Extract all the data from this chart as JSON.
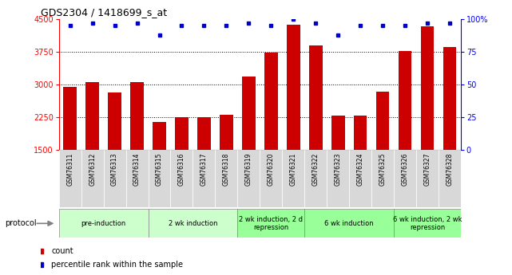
{
  "title": "GDS2304 / 1418699_s_at",
  "samples": [
    "GSM76311",
    "GSM76312",
    "GSM76313",
    "GSM76314",
    "GSM76315",
    "GSM76316",
    "GSM76317",
    "GSM76318",
    "GSM76319",
    "GSM76320",
    "GSM76321",
    "GSM76322",
    "GSM76323",
    "GSM76324",
    "GSM76325",
    "GSM76326",
    "GSM76327",
    "GSM76328"
  ],
  "counts": [
    2950,
    3060,
    2820,
    3060,
    2150,
    2260,
    2260,
    2310,
    3180,
    3730,
    4380,
    3900,
    2280,
    2280,
    2840,
    3770,
    4330,
    3870
  ],
  "percentile_ranks": [
    95,
    97,
    95,
    97,
    88,
    95,
    95,
    95,
    97,
    95,
    100,
    97,
    88,
    95,
    95,
    95,
    97,
    97
  ],
  "bar_color": "#CC0000",
  "dot_color": "#0000CC",
  "ylim_left": [
    1500,
    4500
  ],
  "ylim_right": [
    0,
    100
  ],
  "yticks_left": [
    1500,
    2250,
    3000,
    3750,
    4500
  ],
  "yticks_right": [
    0,
    25,
    50,
    75,
    100
  ],
  "grid_values": [
    2250,
    3000,
    3750
  ],
  "protocol_groups": [
    {
      "label": "pre-induction",
      "start": 0,
      "end": 3,
      "color": "#ccffcc"
    },
    {
      "label": "2 wk induction",
      "start": 4,
      "end": 7,
      "color": "#ccffcc"
    },
    {
      "label": "2 wk induction, 2 d\nrepression",
      "start": 8,
      "end": 10,
      "color": "#99ff99"
    },
    {
      "label": "6 wk induction",
      "start": 11,
      "end": 14,
      "color": "#99ff99"
    },
    {
      "label": "6 wk induction, 2 wk\nrepression",
      "start": 15,
      "end": 17,
      "color": "#99ff99"
    }
  ],
  "legend_count_label": "count",
  "legend_percentile_label": "percentile rank within the sample",
  "protocol_label": "protocol"
}
